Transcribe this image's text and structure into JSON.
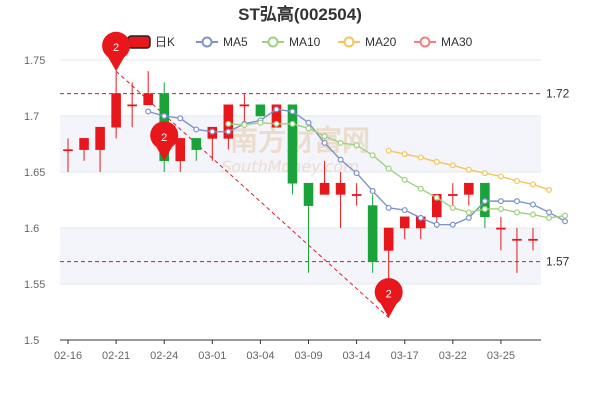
{
  "chart_data": {
    "type": "candlestick",
    "title": "ST弘高(002504)",
    "legend": [
      {
        "name": "日K",
        "color": "#e8171b",
        "kind": "box"
      },
      {
        "name": "MA5",
        "color": "#7d93c9",
        "kind": "line"
      },
      {
        "name": "MA10",
        "color": "#9fd180",
        "kind": "line"
      },
      {
        "name": "MA20",
        "color": "#f3c55c",
        "kind": "line"
      },
      {
        "name": "MA30",
        "color": "#f07f7f",
        "kind": "line"
      }
    ],
    "ylim": [
      1.5,
      1.75
    ],
    "yticks": [
      "1.5",
      "1.55",
      "1.6",
      "1.65",
      "1.7",
      "1.75"
    ],
    "xtick_labels": [
      {
        "i": 0,
        "label": "02-16"
      },
      {
        "i": 3,
        "label": "02-21"
      },
      {
        "i": 6,
        "label": "02-24"
      },
      {
        "i": 9,
        "label": "03-01"
      },
      {
        "i": 12,
        "label": "03-04"
      },
      {
        "i": 15,
        "label": "03-09"
      },
      {
        "i": 18,
        "label": "03-14"
      },
      {
        "i": 21,
        "label": "03-17"
      },
      {
        "i": 24,
        "label": "03-22"
      },
      {
        "i": 27,
        "label": "03-25"
      }
    ],
    "candles": [
      {
        "o": 1.67,
        "h": 1.68,
        "l": 1.65,
        "c": 1.67
      },
      {
        "o": 1.67,
        "h": 1.68,
        "l": 1.66,
        "c": 1.68
      },
      {
        "o": 1.67,
        "h": 1.69,
        "l": 1.65,
        "c": 1.69
      },
      {
        "o": 1.69,
        "h": 1.74,
        "l": 1.68,
        "c": 1.72
      },
      {
        "o": 1.71,
        "h": 1.73,
        "l": 1.69,
        "c": 1.71
      },
      {
        "o": 1.71,
        "h": 1.74,
        "l": 1.71,
        "c": 1.72
      },
      {
        "o": 1.72,
        "h": 1.73,
        "l": 1.65,
        "c": 1.66
      },
      {
        "o": 1.66,
        "h": 1.68,
        "l": 1.65,
        "c": 1.68
      },
      {
        "o": 1.68,
        "h": 1.68,
        "l": 1.66,
        "c": 1.67
      },
      {
        "o": 1.68,
        "h": 1.69,
        "l": 1.66,
        "c": 1.69
      },
      {
        "o": 1.68,
        "h": 1.71,
        "l": 1.67,
        "c": 1.71
      },
      {
        "o": 1.71,
        "h": 1.72,
        "l": 1.69,
        "c": 1.71
      },
      {
        "o": 1.71,
        "h": 1.71,
        "l": 1.7,
        "c": 1.7
      },
      {
        "o": 1.69,
        "h": 1.71,
        "l": 1.69,
        "c": 1.71
      },
      {
        "o": 1.71,
        "h": 1.71,
        "l": 1.63,
        "c": 1.64
      },
      {
        "o": 1.64,
        "h": 1.64,
        "l": 1.56,
        "c": 1.62
      },
      {
        "o": 1.63,
        "h": 1.66,
        "l": 1.63,
        "c": 1.64
      },
      {
        "o": 1.63,
        "h": 1.65,
        "l": 1.6,
        "c": 1.64
      },
      {
        "o": 1.63,
        "h": 1.64,
        "l": 1.62,
        "c": 1.63
      },
      {
        "o": 1.62,
        "h": 1.63,
        "l": 1.56,
        "c": 1.57
      },
      {
        "o": 1.58,
        "h": 1.6,
        "l": 1.52,
        "c": 1.6
      },
      {
        "o": 1.6,
        "h": 1.61,
        "l": 1.59,
        "c": 1.61
      },
      {
        "o": 1.6,
        "h": 1.61,
        "l": 1.59,
        "c": 1.61
      },
      {
        "o": 1.61,
        "h": 1.63,
        "l": 1.6,
        "c": 1.63
      },
      {
        "o": 1.63,
        "h": 1.64,
        "l": 1.62,
        "c": 1.63
      },
      {
        "o": 1.63,
        "h": 1.64,
        "l": 1.62,
        "c": 1.64
      },
      {
        "o": 1.64,
        "h": 1.64,
        "l": 1.6,
        "c": 1.61
      },
      {
        "o": 1.6,
        "h": 1.61,
        "l": 1.58,
        "c": 1.6
      },
      {
        "o": 1.59,
        "h": 1.6,
        "l": 1.56,
        "c": 1.59
      },
      {
        "o": 1.59,
        "h": 1.6,
        "l": 1.58,
        "c": 1.59
      }
    ],
    "ma": [
      {
        "name": "MA5",
        "color": "#7d93c9",
        "start": 5,
        "values": [
          1.704,
          1.7,
          1.698,
          1.688,
          1.686,
          1.686,
          1.693,
          1.696,
          1.706,
          1.704,
          1.694,
          1.676,
          1.661,
          1.649,
          1.633,
          1.618,
          1.616,
          1.609,
          1.603,
          1.603,
          1.609,
          1.624,
          1.624,
          1.624,
          1.621,
          1.614,
          1.606
        ]
      },
      {
        "name": "MA10",
        "color": "#9fd180",
        "start": 10,
        "values": [
          1.693,
          1.692,
          1.694,
          1.693,
          1.693,
          1.689,
          1.682,
          1.676,
          1.674,
          1.665,
          1.653,
          1.643,
          1.635,
          1.627,
          1.618,
          1.614,
          1.617,
          1.617,
          1.614,
          1.612,
          1.609,
          1.611
        ]
      },
      {
        "name": "MA20",
        "color": "#f3c55c",
        "start": 20,
        "values": [
          1.669,
          1.666,
          1.663,
          1.659,
          1.656,
          1.652,
          1.649,
          1.646,
          1.642,
          1.639,
          1.634
        ]
      }
    ],
    "reference_lines": [
      {
        "label": "1.72",
        "value": 1.72
      },
      {
        "label": "1.57",
        "value": 1.57
      }
    ],
    "markers": [
      {
        "label": "2",
        "i": 3,
        "value": 1.74
      },
      {
        "label": "2",
        "i": 6,
        "value": 1.66
      },
      {
        "label": "2",
        "i": 20,
        "value": 1.52
      }
    ],
    "trend_line": {
      "from": {
        "i": 3,
        "value": 1.74
      },
      "to": {
        "i": 20,
        "value": 1.52
      }
    },
    "watermark": {
      "text": "南方财富网",
      "sub": "SouthMoney.com"
    }
  }
}
